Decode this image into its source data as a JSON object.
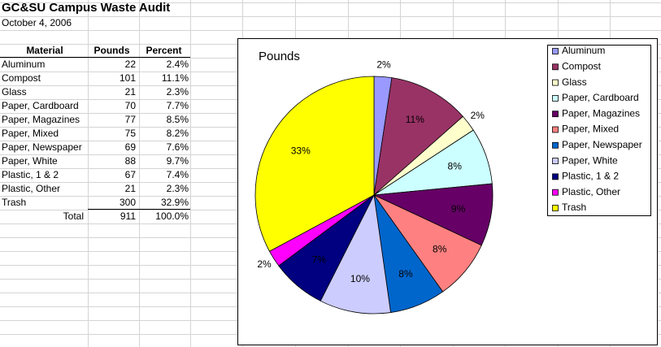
{
  "sheet": {
    "title": "GC&SU Campus Waste Audit",
    "date": "October 4, 2006",
    "table": {
      "headers": [
        "Material",
        "Pounds",
        "Percent"
      ],
      "rows": [
        [
          "Aluminum",
          "22",
          "2.4%"
        ],
        [
          "Compost",
          "101",
          "11.1%"
        ],
        [
          "Glass",
          "21",
          "2.3%"
        ],
        [
          "Paper, Cardboard",
          "70",
          "7.7%"
        ],
        [
          "Paper, Magazines",
          "77",
          "8.5%"
        ],
        [
          "Paper, Mixed",
          "75",
          "8.2%"
        ],
        [
          "Paper, Newspaper",
          "69",
          "7.6%"
        ],
        [
          "Paper, White",
          "88",
          "9.7%"
        ],
        [
          "Plastic, 1 & 2",
          "67",
          "7.4%"
        ],
        [
          "Plastic, Other",
          "21",
          "2.3%"
        ],
        [
          "Trash",
          "300",
          "32.9%"
        ]
      ],
      "total": [
        "Total",
        "911",
        "100.0%"
      ]
    }
  },
  "chart_data": {
    "type": "pie",
    "title": "Pounds",
    "categories": [
      "Aluminum",
      "Compost",
      "Glass",
      "Paper, Cardboard",
      "Paper, Magazines",
      "Paper, Mixed",
      "Paper, Newspaper",
      "Paper, White",
      "Plastic, 1 & 2",
      "Plastic, Other",
      "Trash"
    ],
    "values": [
      2.4,
      11.1,
      2.3,
      7.7,
      8.5,
      8.2,
      7.6,
      9.7,
      7.4,
      2.3,
      32.9
    ],
    "value_labels": [
      "2%",
      "11%",
      "2%",
      "8%",
      "9%",
      "8%",
      "8%",
      "10%",
      "7%",
      "2%",
      "33%"
    ],
    "colors": [
      "#9999ff",
      "#993366",
      "#ffffcc",
      "#ccffff",
      "#660066",
      "#ff8080",
      "#0066cc",
      "#ccccff",
      "#000080",
      "#ff00ff",
      "#ffff00"
    ]
  }
}
